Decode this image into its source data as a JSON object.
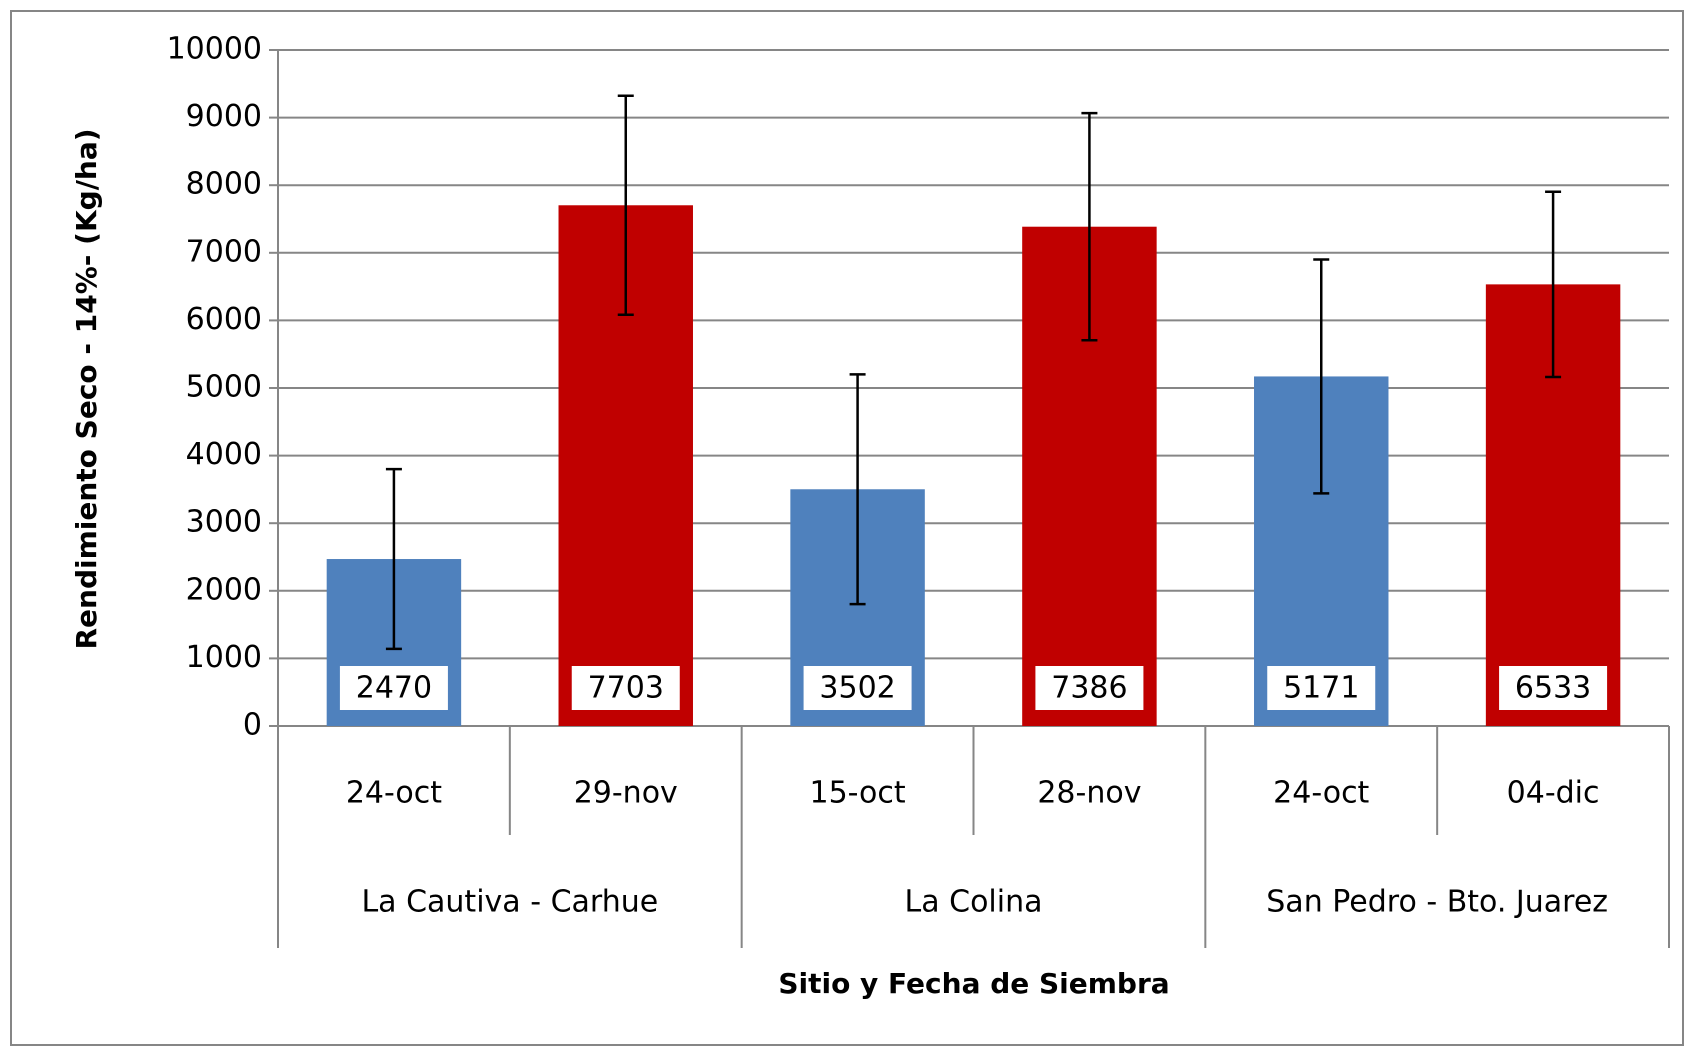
{
  "chart_data": {
    "type": "bar",
    "x_label": "Sitio y Fecha de Siembra",
    "y_label": "Rendimiento Seco - 14%- (Kg/ha)",
    "groups": [
      {
        "label": "La Cautiva - Carhue",
        "categories": [
          "24-oct",
          "29-nov"
        ]
      },
      {
        "label": "La Colina",
        "categories": [
          "15-oct",
          "28-nov"
        ]
      },
      {
        "label": "San Pedro - Bto. Juarez",
        "categories": [
          "24-oct",
          "04-dic"
        ]
      }
    ],
    "series": [
      {
        "values": [
          2470,
          7703,
          3502,
          7386,
          5171,
          6533
        ],
        "errors": [
          1330,
          1620,
          1700,
          1680,
          1730,
          1370
        ],
        "colors": [
          "#4f81bd",
          "#c00000",
          "#4f81bd",
          "#c00000",
          "#4f81bd",
          "#c00000"
        ]
      }
    ],
    "ylim": [
      0,
      10000
    ],
    "yticks": [
      0,
      1000,
      2000,
      3000,
      4000,
      5000,
      6000,
      7000,
      8000,
      9000,
      10000
    ],
    "grid": true
  }
}
